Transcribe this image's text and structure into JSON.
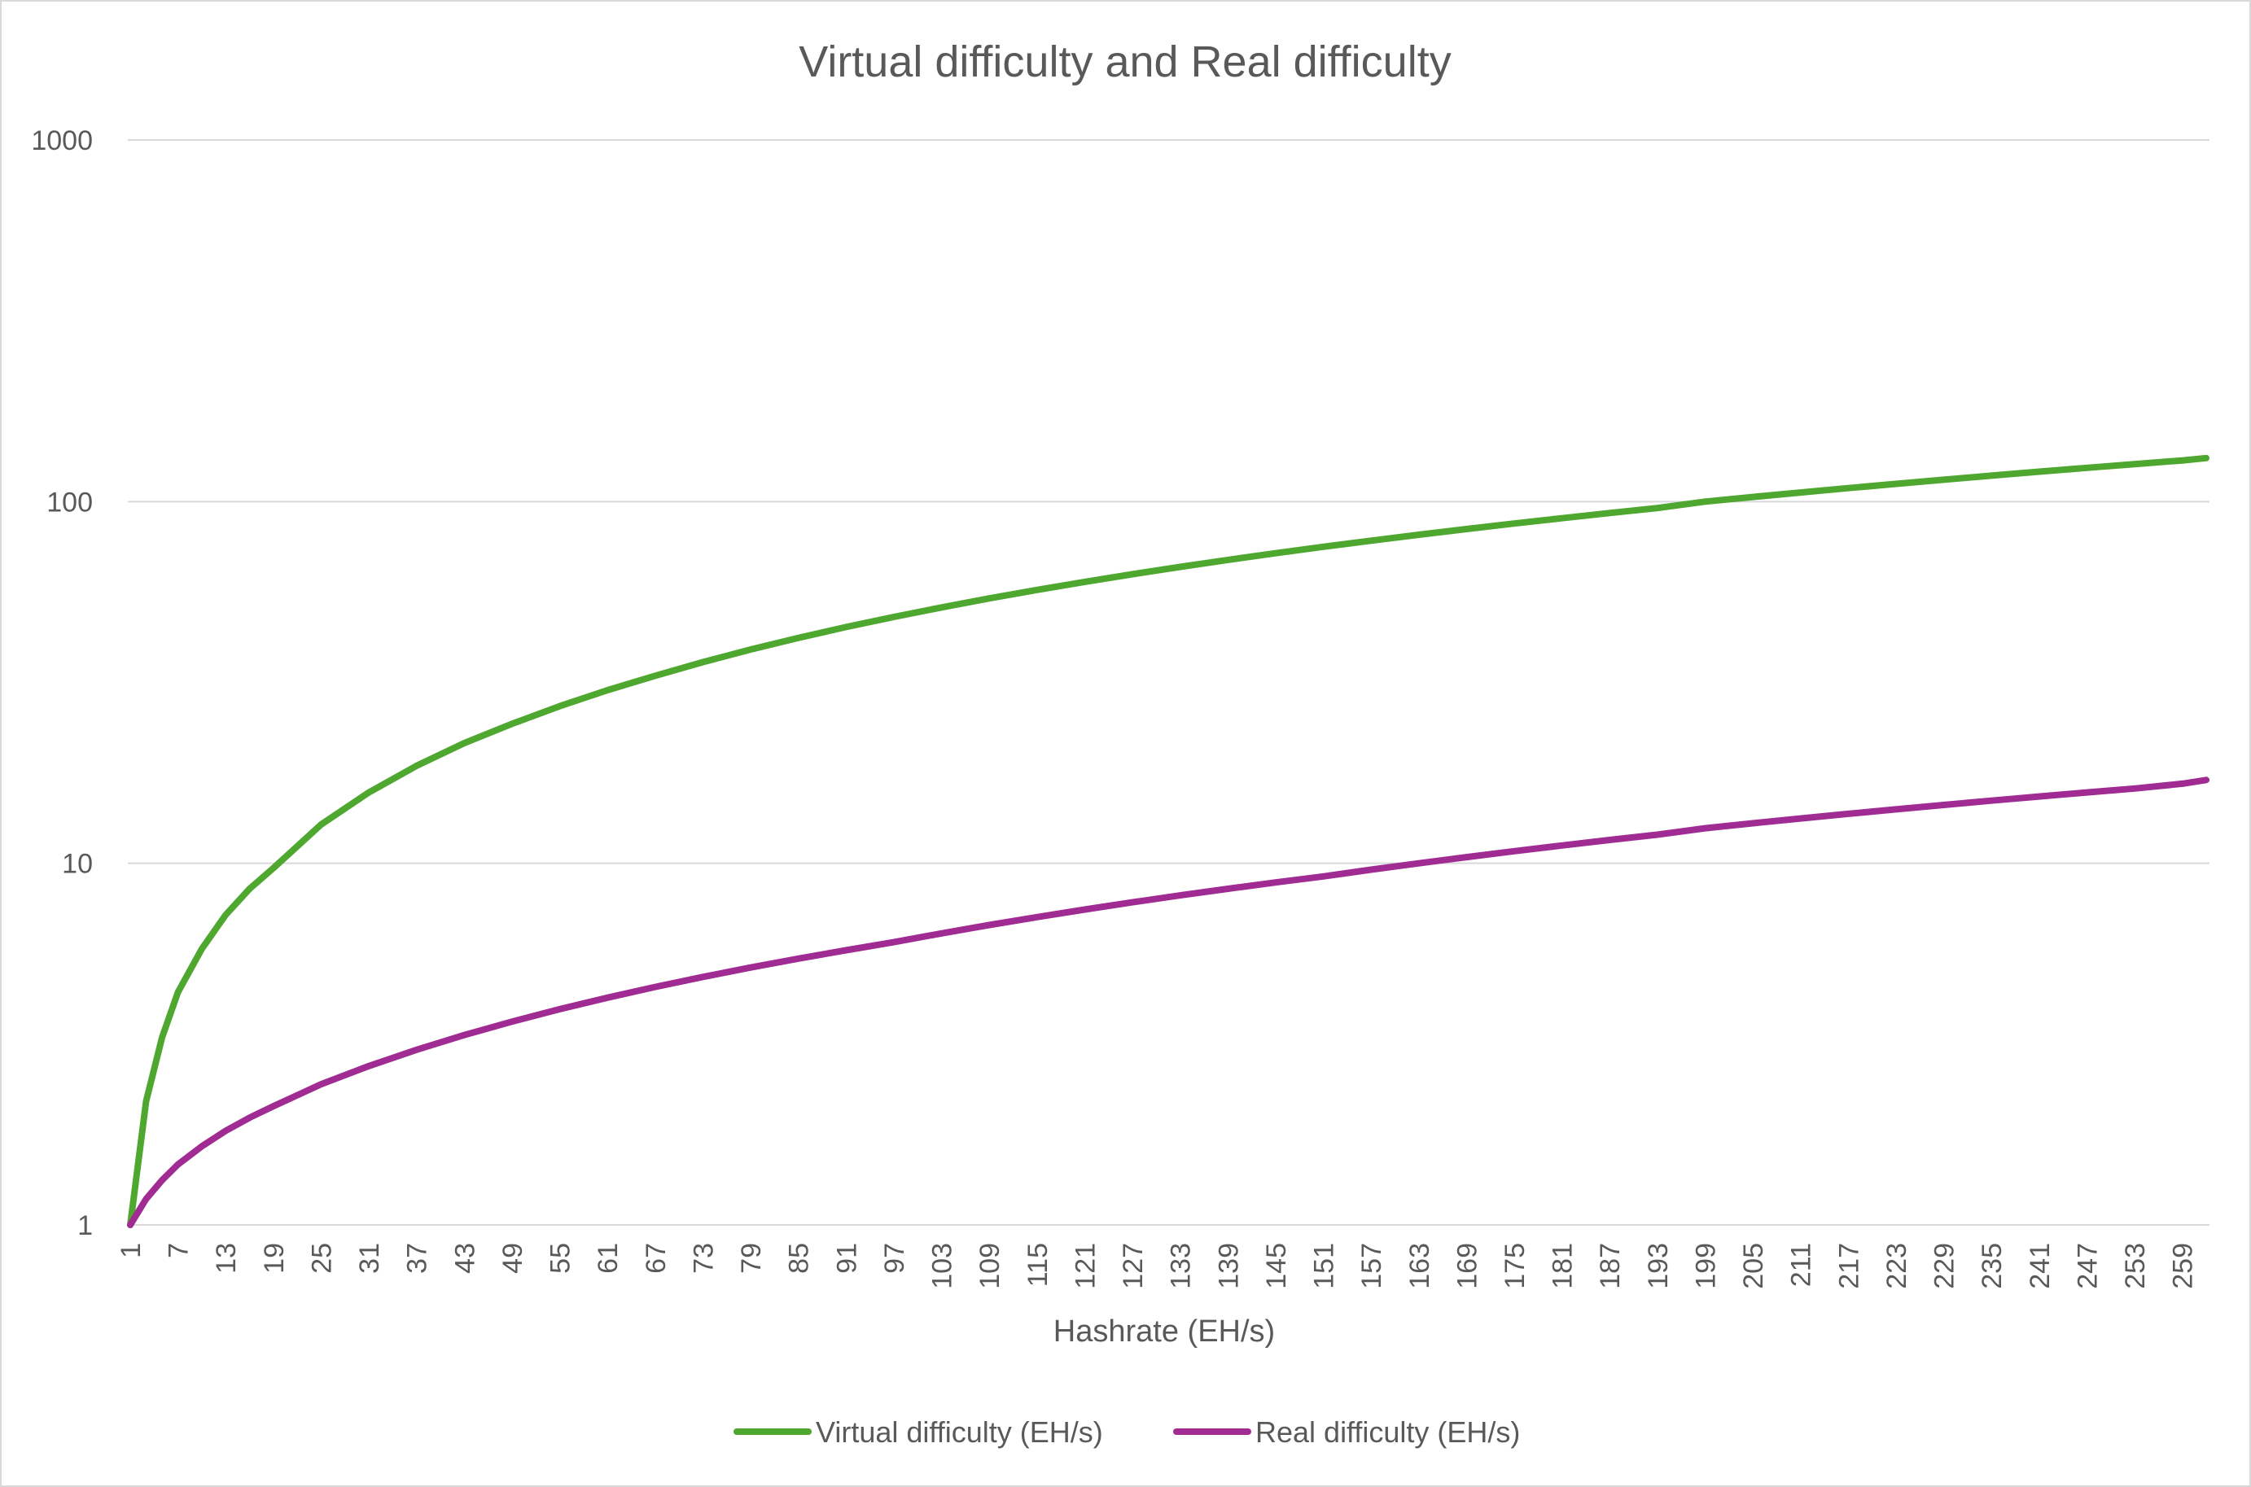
{
  "chart_data": {
    "type": "line",
    "title": "Virtual difficulty and Real difficulty",
    "xlabel": "Hashrate (EH/s)",
    "ylabel": "",
    "y_scale": "log",
    "ylim": [
      1,
      1000
    ],
    "yticks": [
      "1",
      "10",
      "100",
      "1000"
    ],
    "xlim": [
      1,
      262
    ],
    "xtick_labels": [
      "1",
      "7",
      "13",
      "19",
      "25",
      "31",
      "37",
      "43",
      "49",
      "55",
      "61",
      "67",
      "73",
      "79",
      "85",
      "91",
      "97",
      "103",
      "109",
      "115",
      "121",
      "127",
      "133",
      "139",
      "145",
      "151",
      "157",
      "163",
      "169",
      "175",
      "181",
      "187",
      "193",
      "199",
      "205",
      "211",
      "217",
      "223",
      "229",
      "235",
      "241",
      "247",
      "253",
      "259"
    ],
    "grid": true,
    "legend": "bottom",
    "series": [
      {
        "name": "Virtual difficulty (EH/s)",
        "color": "#4ea72e",
        "x": [
          1,
          3,
          5,
          7,
          10,
          13,
          16,
          19,
          25,
          31,
          37,
          43,
          49,
          55,
          61,
          67,
          73,
          79,
          85,
          91,
          97,
          103,
          109,
          115,
          121,
          127,
          133,
          139,
          145,
          151,
          157,
          163,
          169,
          175,
          181,
          187,
          193,
          199,
          205,
          211,
          217,
          223,
          229,
          235,
          241,
          247,
          253,
          259,
          262
        ],
        "y": [
          1,
          2.2,
          3.3,
          4.4,
          5.8,
          7.2,
          8.5,
          9.7,
          12.8,
          15.7,
          18.6,
          21.5,
          24.3,
          27.2,
          30.1,
          33,
          36,
          39,
          42,
          45,
          48,
          51,
          54,
          57,
          60,
          63,
          66,
          69,
          72,
          75,
          78,
          81,
          84,
          87,
          90,
          93,
          96,
          100,
          103,
          106,
          109,
          112,
          115,
          118,
          121,
          124,
          127,
          130,
          132
        ]
      },
      {
        "name": "Real difficulty (EH/s)",
        "color": "#a02b93",
        "x": [
          1,
          3,
          5,
          7,
          10,
          13,
          16,
          19,
          25,
          31,
          37,
          43,
          49,
          55,
          61,
          67,
          73,
          79,
          85,
          91,
          97,
          103,
          109,
          115,
          121,
          127,
          133,
          139,
          145,
          151,
          157,
          163,
          169,
          175,
          181,
          187,
          193,
          199,
          205,
          211,
          217,
          223,
          229,
          235,
          241,
          247,
          253,
          259,
          262
        ],
        "y": [
          1,
          1.18,
          1.33,
          1.47,
          1.65,
          1.82,
          1.98,
          2.13,
          2.45,
          2.75,
          3.05,
          3.35,
          3.65,
          3.95,
          4.25,
          4.55,
          4.85,
          5.15,
          5.45,
          5.75,
          6.05,
          6.4,
          6.75,
          7.1,
          7.45,
          7.8,
          8.15,
          8.5,
          8.85,
          9.2,
          9.6,
          10.0,
          10.4,
          10.8,
          11.2,
          11.6,
          12.0,
          12.5,
          12.9,
          13.3,
          13.7,
          14.1,
          14.5,
          14.9,
          15.3,
          15.7,
          16.1,
          16.6,
          17.0
        ]
      }
    ]
  }
}
